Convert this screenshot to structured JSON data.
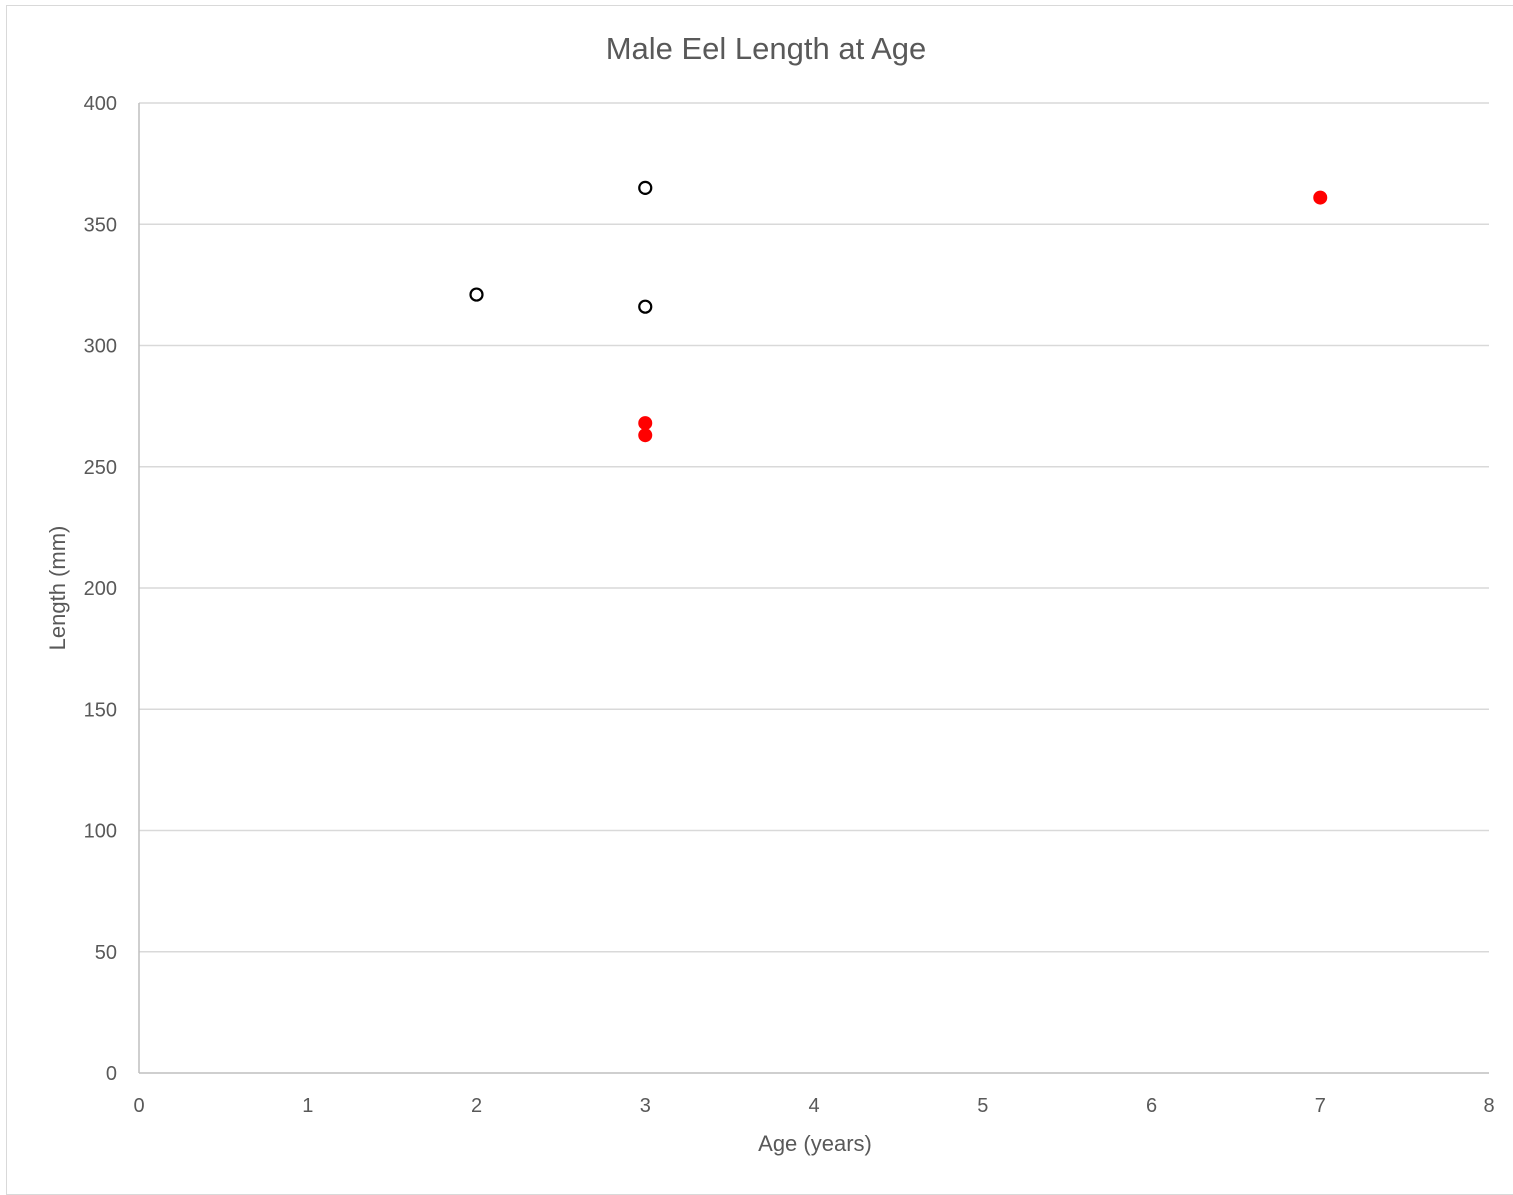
{
  "chart_data": {
    "type": "scatter",
    "title": "Male Eel Length at Age",
    "xlabel": "Age (years)",
    "ylabel": "Length (mm)",
    "xlim": [
      0,
      8
    ],
    "ylim": [
      0,
      400
    ],
    "xticks": [
      "0",
      "1",
      "2",
      "3",
      "4",
      "5",
      "6",
      "7",
      "8"
    ],
    "yticks": [
      "0",
      "50",
      "100",
      "150",
      "200",
      "250",
      "300",
      "350",
      "400"
    ],
    "grid": true,
    "legend": "none",
    "series": [
      {
        "marker": "open-circle",
        "color": "#000000",
        "points": [
          {
            "x": 2,
            "y": 321
          },
          {
            "x": 3,
            "y": 365
          },
          {
            "x": 3,
            "y": 316
          }
        ]
      },
      {
        "marker": "filled-circle",
        "color": "#ff0000",
        "points": [
          {
            "x": 3,
            "y": 268
          },
          {
            "x": 3,
            "y": 263
          },
          {
            "x": 7,
            "y": 361
          }
        ]
      }
    ]
  }
}
